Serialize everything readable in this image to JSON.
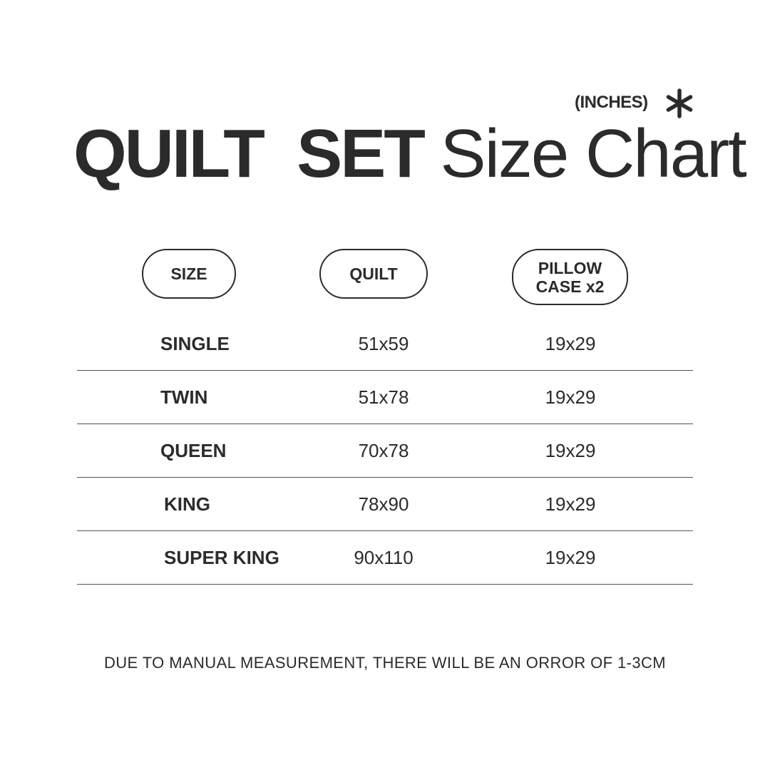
{
  "unit_label": "(INCHES)",
  "unit_icon": "asterisk-icon",
  "title": {
    "bold": "QUILT  SET",
    "regular": "Size Chart"
  },
  "headers": [
    "SIZE",
    "QUILT",
    "PILLOW\nCASE x2"
  ],
  "headers_lines": {
    "pillow_line1": "PILLOW",
    "pillow_line2": "CASE x2"
  },
  "rows": [
    {
      "size": "SINGLE",
      "quilt": "51x59",
      "pillow": "19x29"
    },
    {
      "size": "TWIN",
      "quilt": "51x78",
      "pillow": "19x29"
    },
    {
      "size": "QUEEN",
      "quilt": "70x78",
      "pillow": "19x29"
    },
    {
      "size": "KING",
      "quilt": "78x90",
      "pillow": "19x29"
    },
    {
      "size": "SUPER KING",
      "quilt": "90x110",
      "pillow": "19x29"
    }
  ],
  "note": "DUE TO MANUAL MEASUREMENT, THERE WILL BE AN ORROR OF 1-3CM",
  "colors": {
    "text": "#2b2b2b",
    "background": "#ffffff",
    "divider": "#555555"
  }
}
